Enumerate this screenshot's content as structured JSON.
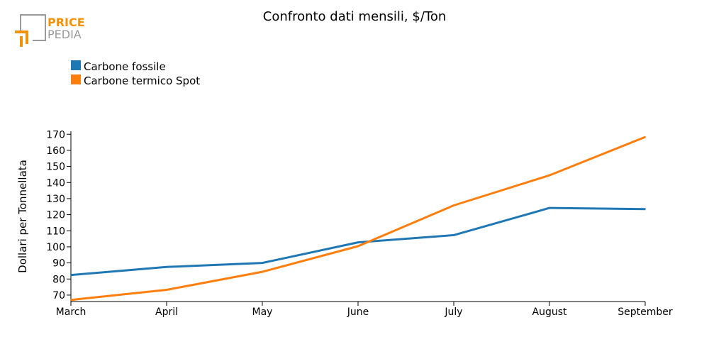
{
  "logo": {
    "line1": "PRICE",
    "line2": "PEDIA",
    "brand_color": "#f0930a",
    "frame_color": "#9a9a9a"
  },
  "chart_data": {
    "type": "line",
    "title": "Confronto dati mensili, $/Ton",
    "xlabel": "",
    "ylabel": "Dollari per Tonnellata",
    "categories": [
      "March",
      "April",
      "May",
      "June",
      "July",
      "August",
      "September"
    ],
    "ylim": [
      66,
      171
    ],
    "yticks": [
      70,
      80,
      90,
      100,
      110,
      120,
      130,
      140,
      150,
      160,
      170
    ],
    "grid": false,
    "legend_position": "top-left",
    "series": [
      {
        "name": "Carbone fossile",
        "color": "#1f77b4",
        "values": [
          82.5,
          87.5,
          90,
          102.8,
          107.3,
          124.2,
          123.5
        ]
      },
      {
        "name": "Carbone termico Spot",
        "color": "#ff7f0e",
        "values": [
          67,
          73.3,
          84.5,
          100.4,
          125.8,
          144.5,
          168.3
        ]
      }
    ]
  }
}
